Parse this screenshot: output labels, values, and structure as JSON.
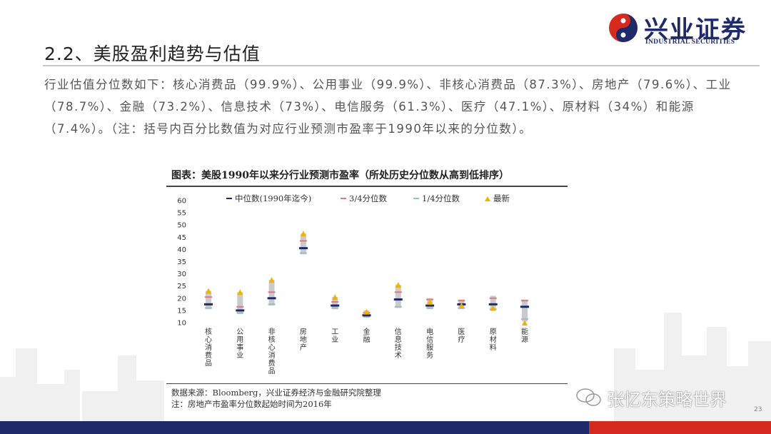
{
  "header": {
    "logo_cn": "兴业证券",
    "logo_en": "INDUSTRIAL SECURITIES",
    "slide_title": "2.2、美股盈利趋势与估值",
    "brand_navy": "#1f2a6b",
    "brand_red": "#d62a1e"
  },
  "body": {
    "paragraph": "行业估值分位数如下：核心消费品（99.9%）、公用事业（99.9%）、非核心消费品（87.3%）、房地产（79.6%）、工业（78.7%）、金融（73.2%）、信息技术（73%）、电信服务（61.3%）、医疗（47.1%）、原材料（34%）和能源（7.4%）。（注：括号内百分比数值为对应行业预测市盈率于1990年以来的分位数）。"
  },
  "chart_data": {
    "type": "box",
    "title": "图表：美股1990年以来分行业预测市盈率（所处历史分位数从高到低排序）",
    "ylim": [
      10,
      60
    ],
    "yticks": [
      10,
      15,
      20,
      25,
      30,
      35,
      40,
      45,
      50,
      55,
      60
    ],
    "legend": [
      {
        "key": "median",
        "label": "中位数(1990年迄今)",
        "color": "#1f2a6b"
      },
      {
        "key": "q3",
        "label": "3/4分位数",
        "color": "#e07a7a"
      },
      {
        "key": "q1",
        "label": "1/4分位数",
        "color": "#9dbcc4"
      },
      {
        "key": "latest",
        "label": "最新",
        "color": "#f0b400"
      }
    ],
    "legend_position": "top",
    "categories": [
      "核心消费品",
      "公用事业",
      "非核心消费品",
      "房地产",
      "工业",
      "金融",
      "信息技术",
      "电信服务",
      "医疗",
      "原材料",
      "能源"
    ],
    "low": [
      15.5,
      13.5,
      17.0,
      38.0,
      15.5,
      12.0,
      16.0,
      15.5,
      15.5,
      15.0,
      10.5
    ],
    "q1": [
      16.0,
      14.0,
      17.5,
      38.5,
      16.0,
      12.5,
      16.5,
      16.0,
      16.0,
      15.5,
      11.5
    ],
    "median": [
      17.5,
      15.0,
      20.0,
      40.5,
      17.0,
      13.0,
      19.5,
      17.0,
      17.5,
      17.5,
      16.5
    ],
    "q3": [
      20.5,
      16.5,
      22.5,
      43.5,
      18.5,
      14.0,
      22.5,
      19.5,
      19.0,
      20.0,
      19.0
    ],
    "high": [
      23.0,
      22.5,
      27.5,
      46.5,
      20.5,
      15.0,
      25.5,
      20.0,
      19.5,
      21.0,
      19.5
    ],
    "latest": [
      23.0,
      22.5,
      27.5,
      46.5,
      20.5,
      14.5,
      25.5,
      18.5,
      17.0,
      16.0,
      10.0
    ]
  },
  "notes": {
    "source": "数据来源：Bloomberg，兴业证券经济与金融研究院整理",
    "remark": "注：房地产市盈率分位数起始时间为2016年"
  },
  "footer": {
    "watermark": "张忆东策略世界",
    "page_number": "23"
  }
}
